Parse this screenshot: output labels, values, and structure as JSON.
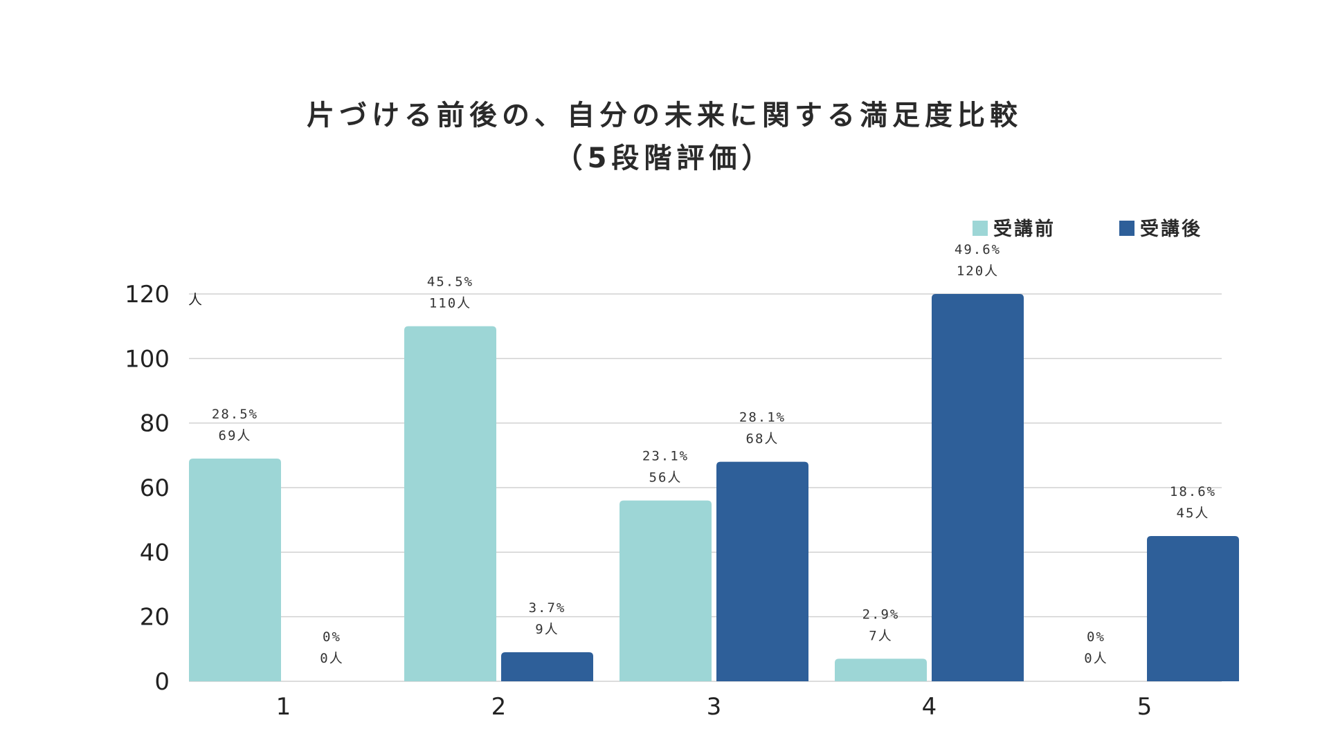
{
  "chart_data": {
    "type": "bar",
    "title": "片づける前後の、自分の未来に関する満足度比較",
    "subtitle": "（5段階評価）",
    "y_unit": "人",
    "categories": [
      "1",
      "2",
      "3",
      "4",
      "5"
    ],
    "ylim": [
      0,
      120
    ],
    "yticks": [
      0,
      20,
      40,
      60,
      80,
      100,
      120
    ],
    "grid": true,
    "legend_position": "top-right",
    "series": [
      {
        "name": "受講前",
        "color": "#9dd6d6",
        "values": [
          69,
          110,
          56,
          7,
          0
        ],
        "percent_labels": [
          "28.5%",
          "45.5%",
          "23.1%",
          "2.9%",
          "0%"
        ],
        "count_labels": [
          "69人",
          "110人",
          "56人",
          "7人",
          "0人"
        ]
      },
      {
        "name": "受講後",
        "color": "#2e5f99",
        "values": [
          0,
          9,
          68,
          120,
          45
        ],
        "percent_labels": [
          "0%",
          "3.7%",
          "28.1%",
          "49.6%",
          "18.6%"
        ],
        "count_labels": [
          "0人",
          "9人",
          "68人",
          "120人",
          "45人"
        ]
      }
    ]
  }
}
